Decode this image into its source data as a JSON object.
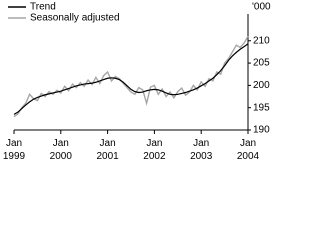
{
  "chart_data": {
    "type": "line",
    "y_unit_label": "'000",
    "x": [
      "Jan 1999",
      null,
      null,
      null,
      null,
      null,
      null,
      null,
      null,
      null,
      null,
      null,
      "Jan 2000",
      null,
      null,
      null,
      null,
      null,
      null,
      null,
      null,
      null,
      null,
      null,
      "Jan 2001",
      null,
      null,
      null,
      null,
      null,
      null,
      null,
      null,
      null,
      null,
      null,
      "Jan 2002",
      null,
      null,
      null,
      null,
      null,
      null,
      null,
      null,
      null,
      null,
      null,
      "Jan 2003",
      null,
      null,
      null,
      null,
      null,
      null,
      null,
      null,
      null,
      null,
      null,
      "Jan 2004"
    ],
    "series": [
      {
        "name": "Trend",
        "color": "#000000",
        "values": [
          193.5,
          194,
          194.8,
          195.6,
          196.3,
          196.9,
          197.3,
          197.6,
          197.9,
          198.1,
          198.3,
          198.5,
          198.7,
          199,
          199.3,
          199.6,
          199.9,
          200.1,
          200.3,
          200.4,
          200.5,
          200.7,
          201,
          201.3,
          201.6,
          201.7,
          201.6,
          201.3,
          200.7,
          199.9,
          199.1,
          198.6,
          198.4,
          198.5,
          198.8,
          199,
          199.1,
          199,
          198.7,
          198.3,
          198,
          197.9,
          198,
          198.2,
          198.4,
          198.7,
          199,
          199.4,
          199.9,
          200.4,
          201,
          201.6,
          202.4,
          203.3,
          204.4,
          205.6,
          206.6,
          207.4,
          208.1,
          208.7,
          209.3
        ]
      },
      {
        "name": "Seasonally adjusted",
        "color": "#a6a6a6",
        "values": [
          193,
          193.6,
          195,
          196,
          198,
          197,
          196.6,
          198.2,
          197.5,
          198.6,
          198,
          198.9,
          198.3,
          199.8,
          198.8,
          200.3,
          199.5,
          200.6,
          199.8,
          201.2,
          200.2,
          201.8,
          200.4,
          202.2,
          203,
          201,
          202,
          201.5,
          200.5,
          199.5,
          198.5,
          198,
          199.5,
          199,
          196,
          199.6,
          200,
          198,
          199.2,
          197.5,
          198.5,
          197.2,
          198.6,
          199.4,
          197.8,
          198.5,
          200,
          199,
          200.8,
          199.8,
          201.5,
          201,
          203,
          202.5,
          205,
          206,
          207.5,
          209,
          208.5,
          209.5,
          211
        ]
      }
    ],
    "ylim": [
      190,
      216
    ],
    "yticks": [
      190,
      195,
      200,
      205,
      210
    ],
    "legend": "top-left"
  }
}
